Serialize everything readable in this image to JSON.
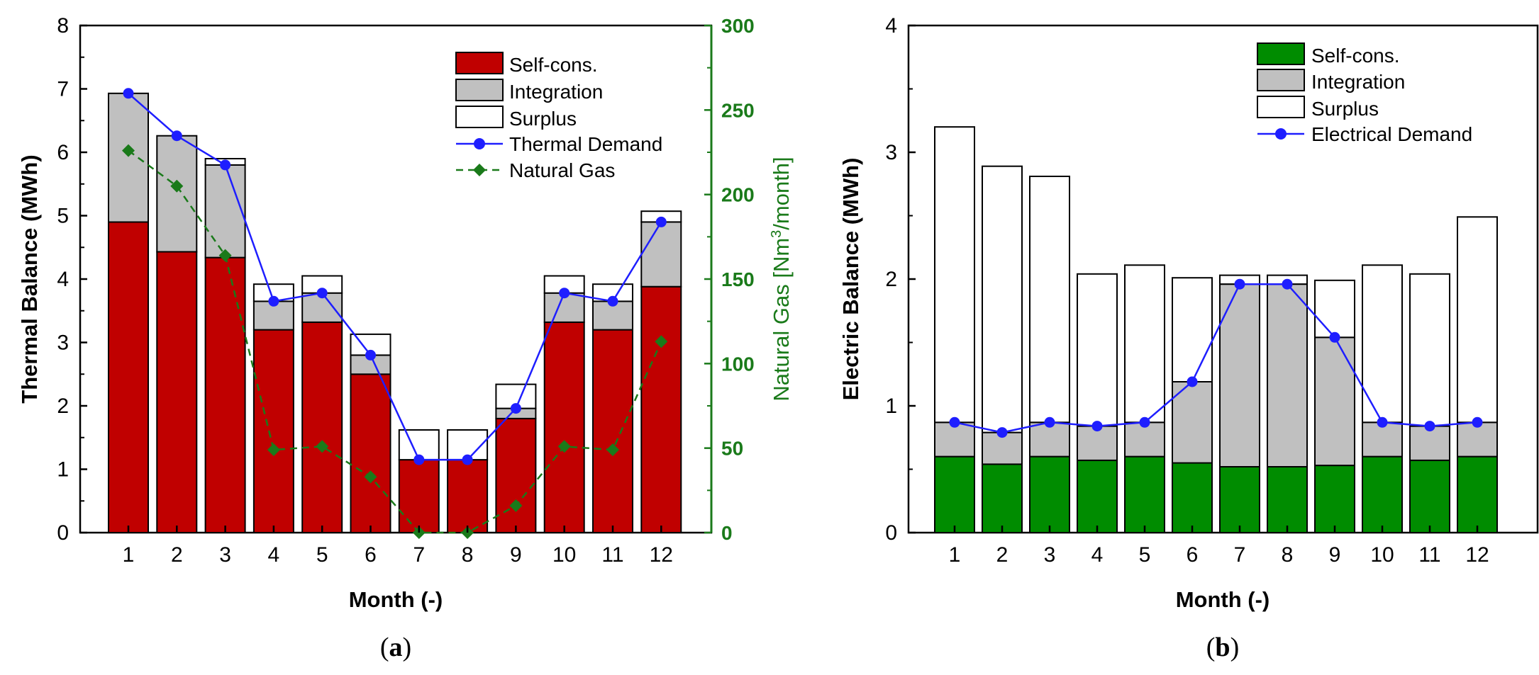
{
  "colors": {
    "self_cons_thermal": "#c00000",
    "self_cons_electric": "#008c00",
    "integration": "#c0c0c0",
    "surplus": "#ffffff",
    "demand": "#1e1eff",
    "natural_gas": "#1a7a1a",
    "axis": "#000000"
  },
  "chart_data": [
    {
      "id": "a",
      "type": "bar",
      "stacked": true,
      "caption_open": "(",
      "caption_letter": "a",
      "caption_close": ")",
      "xlabel": "Month (-)",
      "ylabel": "Thermal Balance (MWh)",
      "y2label_prefix": "Natural Gas [Nm",
      "y2label_sup": "3",
      "y2label_suffix": "/month]",
      "ylim": [
        0,
        8
      ],
      "yticks": [
        "0",
        "1",
        "2",
        "3",
        "4",
        "5",
        "6",
        "7",
        "8"
      ],
      "y2lim": [
        0,
        300
      ],
      "y2ticks": [
        "0",
        "50",
        "100",
        "150",
        "200",
        "250",
        "300"
      ],
      "categories": [
        "1",
        "2",
        "3",
        "4",
        "5",
        "6",
        "7",
        "8",
        "9",
        "10",
        "11",
        "12"
      ],
      "legend_position": "top-right",
      "series": [
        {
          "name": "Self-cons.",
          "kind": "bar",
          "values": [
            4.9,
            4.43,
            4.34,
            3.2,
            3.32,
            2.5,
            1.15,
            1.15,
            1.8,
            3.32,
            3.2,
            3.88
          ]
        },
        {
          "name": "Integration",
          "kind": "bar",
          "values": [
            2.03,
            1.83,
            1.46,
            0.45,
            0.46,
            0.3,
            0.0,
            0.0,
            0.16,
            0.46,
            0.45,
            1.02
          ]
        },
        {
          "name": "Surplus",
          "kind": "bar",
          "values": [
            0.0,
            0.0,
            0.1,
            0.27,
            0.27,
            0.33,
            0.47,
            0.47,
            0.38,
            0.27,
            0.27,
            0.17
          ]
        },
        {
          "name": "Thermal Demand",
          "kind": "line",
          "axis": "left",
          "values": [
            6.93,
            6.26,
            5.8,
            3.65,
            3.78,
            2.8,
            1.15,
            1.15,
            1.96,
            3.78,
            3.65,
            4.9
          ]
        },
        {
          "name": "Natural Gas",
          "kind": "line",
          "axis": "right",
          "dashed": true,
          "values": [
            226,
            205,
            164,
            49,
            51,
            33,
            0,
            0,
            16,
            51,
            49,
            113
          ]
        }
      ]
    },
    {
      "id": "b",
      "type": "bar",
      "stacked": true,
      "caption_open": "(",
      "caption_letter": "b",
      "caption_close": ")",
      "xlabel": "Month (-)",
      "ylabel": "Electric Balance (MWh)",
      "ylim": [
        0,
        4
      ],
      "yticks": [
        "0",
        "1",
        "2",
        "3",
        "4"
      ],
      "categories": [
        "1",
        "2",
        "3",
        "4",
        "5",
        "6",
        "7",
        "8",
        "9",
        "10",
        "11",
        "12"
      ],
      "legend_position": "top-right",
      "series": [
        {
          "name": "Self-cons.",
          "kind": "bar",
          "values": [
            0.6,
            0.54,
            0.6,
            0.57,
            0.6,
            0.55,
            0.52,
            0.52,
            0.53,
            0.6,
            0.57,
            0.6
          ]
        },
        {
          "name": "Integration",
          "kind": "bar",
          "values": [
            0.27,
            0.25,
            0.27,
            0.27,
            0.27,
            0.64,
            1.44,
            1.44,
            1.01,
            0.27,
            0.27,
            0.27
          ]
        },
        {
          "name": "Surplus",
          "kind": "bar",
          "values": [
            2.33,
            2.1,
            1.94,
            1.2,
            1.24,
            0.82,
            0.07,
            0.07,
            0.45,
            1.24,
            1.2,
            1.62
          ]
        },
        {
          "name": "Electrical Demand",
          "kind": "line",
          "axis": "left",
          "values": [
            0.87,
            0.79,
            0.87,
            0.84,
            0.87,
            1.19,
            1.96,
            1.96,
            1.54,
            0.87,
            0.84,
            0.87
          ]
        }
      ]
    }
  ]
}
